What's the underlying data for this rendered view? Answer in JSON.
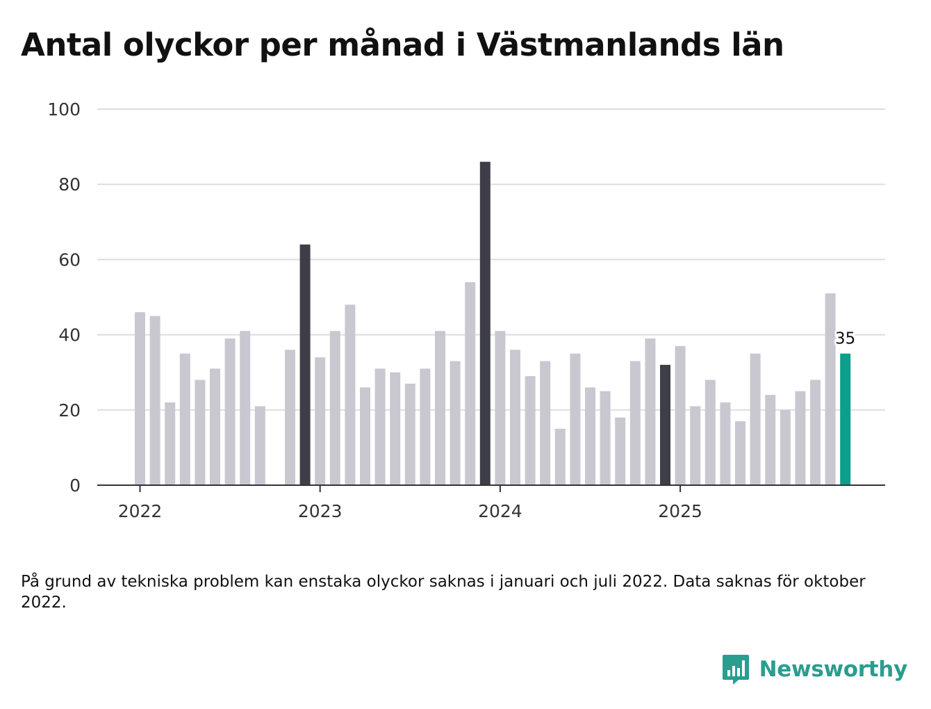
{
  "title": "Antal olyckor per månad i Västmanlands län",
  "footnote": "På grund av tekniska problem kan enstaka olyckor saknas i januari och juli 2022. Data saknas för oktober 2022.",
  "brand": {
    "name": "Newsworthy",
    "icon": "newsworthy-logo-icon"
  },
  "colors": {
    "default": "#c9c8d0",
    "december": "#3e3e48",
    "latest": "#0d9e8c",
    "grid": "#dddddd",
    "axis": "#333333",
    "text": "#111111"
  },
  "chart_data": {
    "type": "bar",
    "title": "Antal olyckor per månad i Västmanlands län",
    "xlabel": "",
    "ylabel": "",
    "ylim": [
      0,
      100
    ],
    "yticks": [
      0,
      20,
      40,
      60,
      80,
      100
    ],
    "year_labels": [
      "2022",
      "2023",
      "2024",
      "2025"
    ],
    "categories": [
      "2022-01",
      "2022-02",
      "2022-03",
      "2022-04",
      "2022-05",
      "2022-06",
      "2022-07",
      "2022-08",
      "2022-09",
      "2022-10",
      "2022-11",
      "2022-12",
      "2023-01",
      "2023-02",
      "2023-03",
      "2023-04",
      "2023-05",
      "2023-06",
      "2023-07",
      "2023-08",
      "2023-09",
      "2023-10",
      "2023-11",
      "2023-12",
      "2024-01",
      "2024-02",
      "2024-03",
      "2024-04",
      "2024-05",
      "2024-06",
      "2024-07",
      "2024-08",
      "2024-09",
      "2024-10",
      "2024-11",
      "2024-12",
      "2025-01",
      "2025-02",
      "2025-03",
      "2025-04",
      "2025-05",
      "2025-06",
      "2025-07",
      "2025-08",
      "2025-09",
      "2025-10",
      "2025-11",
      "2025-12"
    ],
    "values": [
      46,
      45,
      22,
      35,
      28,
      31,
      39,
      41,
      21,
      null,
      36,
      64,
      34,
      41,
      48,
      26,
      31,
      30,
      27,
      31,
      41,
      33,
      54,
      86,
      41,
      36,
      29,
      33,
      15,
      35,
      26,
      25,
      18,
      33,
      39,
      32,
      37,
      21,
      28,
      22,
      17,
      35,
      24,
      20,
      25,
      28,
      51,
      35
    ],
    "highlight": [
      11,
      23,
      35
    ],
    "latest_index": 47,
    "latest_label": "35",
    "grid": true
  }
}
